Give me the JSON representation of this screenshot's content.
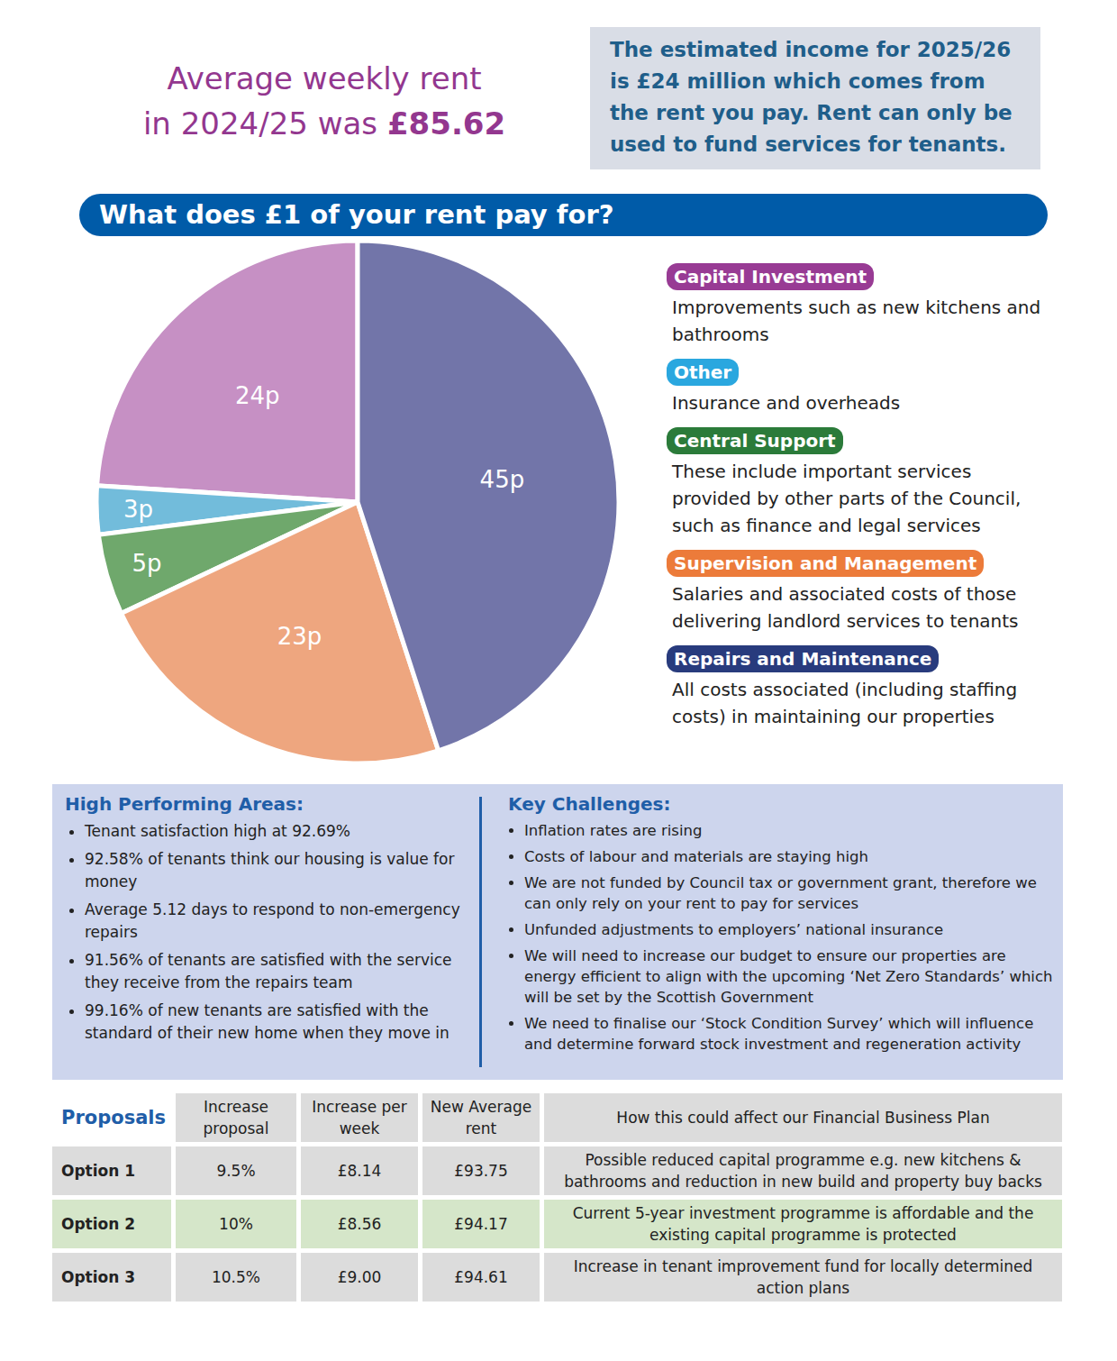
{
  "header": {
    "line1": "Average weekly rent",
    "line2": "in 2024/25 was",
    "amount": "£85.62"
  },
  "income_note": "The estimated income for 2025/26 is £24 million which comes from the rent you pay. Rent can only be used to fund services for tenants.",
  "section_title": "What does £1 of your rent pay for?",
  "chart_data": {
    "type": "pie",
    "categories": [
      "Capital Investment",
      "Other",
      "Central Support",
      "Supervision and Management",
      "Repairs and Maintenance"
    ],
    "values": [
      24,
      3,
      5,
      23,
      45
    ],
    "value_labels": [
      "24p",
      "3p",
      "5p",
      "23p",
      "45p"
    ],
    "colors": [
      "#c690c4",
      "#72bcdb",
      "#6fa86c",
      "#eea67f",
      "#7275a9"
    ],
    "data_labels": true
  },
  "legend": {
    "colors": [
      "#983b94",
      "#2aa7df",
      "#2b7b3a",
      "#ec7b3a",
      "#283b7d"
    ],
    "descriptions": [
      "Improvements such as new kitchens and bathrooms",
      "Insurance and overheads",
      "These include important services provided by other parts of the Council, such as finance and legal services",
      "Salaries and associated costs of those delivering landlord services to tenants",
      "All costs associated (including staffing costs) in maintaining our properties"
    ]
  },
  "high_performing": {
    "title": "High Performing Areas:",
    "items": [
      "Tenant satisfaction high at 92.69%",
      "92.58% of tenants think our housing is value for money",
      "Average 5.12 days to respond to non-emergency repairs",
      "91.56% of tenants are satisfied with the service they receive from the repairs team",
      "99.16% of new tenants are satisfied with the standard of their new home when they move in"
    ]
  },
  "challenges": {
    "title": "Key Challenges:",
    "items": [
      "Inflation rates are rising",
      "Costs of labour and materials are staying high",
      "We are not funded by Council tax or government grant, therefore we can only rely on your rent to pay for services",
      "Unfunded adjustments to employers’ national insurance",
      "We will need to increase our budget to ensure our properties are energy efficient to align with the upcoming ‘Net Zero Standards’ which will be set by the Scottish Government",
      "We need to finalise our ‘Stock Condition Survey’ which will influence and determine forward stock investment and regeneration activity"
    ]
  },
  "proposals": {
    "headers": [
      "Proposals",
      "Increase proposal",
      "Increase per week",
      "New Average rent",
      "How this could affect our Financial Business Plan"
    ],
    "rows": [
      [
        "Option 1",
        "9.5%",
        "£8.14",
        "£93.75",
        "Possible reduced capital programme e.g. new kitchens & bathrooms and reduction in new build and property buy backs"
      ],
      [
        "Option 2",
        "10%",
        "£8.56",
        "£94.17",
        "Current 5-year investment programme is affordable and the existing capital programme is protected"
      ],
      [
        "Option 3",
        "10.5%",
        "£9.00",
        "£94.61",
        "Increase in tenant improvement fund for locally determined action plans"
      ]
    ]
  }
}
